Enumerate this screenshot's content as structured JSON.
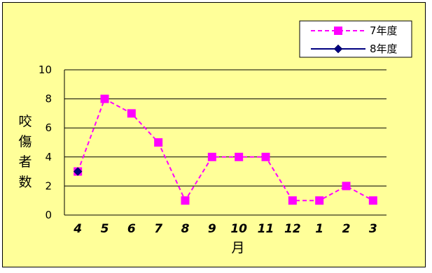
{
  "chart_data": {
    "type": "line",
    "categories": [
      "4",
      "5",
      "6",
      "7",
      "8",
      "9",
      "10",
      "11",
      "12",
      "1",
      "2",
      "3"
    ],
    "series": [
      {
        "name": "7年度",
        "values": [
          3,
          8,
          7,
          5,
          1,
          4,
          4,
          4,
          1,
          1,
          2,
          1
        ],
        "color": "#ff00ff",
        "line_style": "dashed",
        "marker": "square"
      },
      {
        "name": "8年度",
        "values": [
          3,
          null,
          null,
          null,
          null,
          null,
          null,
          null,
          null,
          null,
          null,
          null
        ],
        "color": "#000080",
        "line_style": "solid",
        "marker": "diamond"
      }
    ],
    "xlabel": "月",
    "ylabel": "咬傷者数",
    "ylim": [
      0,
      10
    ],
    "yticks": [
      0,
      2,
      4,
      6,
      8,
      10
    ],
    "grid": "horizontal",
    "legend_position": "top-right",
    "plot_background": "#ffff99"
  }
}
